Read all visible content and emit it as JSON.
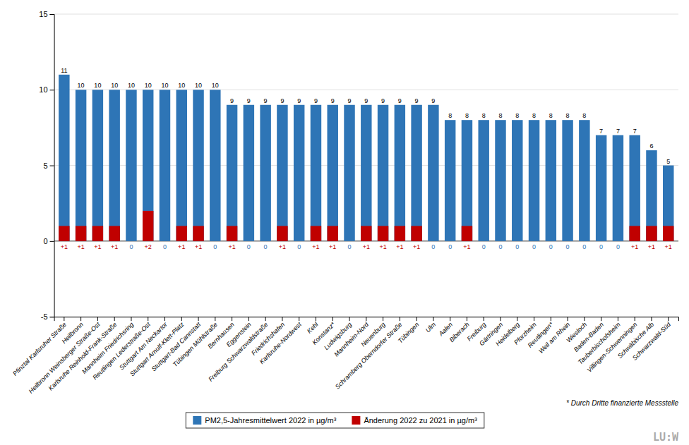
{
  "chart_data": {
    "type": "bar",
    "categories": [
      "Pfinztal Karlsruher Straße",
      "Heilbronn",
      "Heilbronn Weinsberger Straße-Ost",
      "Karlsruhe Reinhold-Frank-Straße",
      "Mannheim Friedrichsring",
      "Reutlingen Lederstraße-Ost",
      "Stuttgart Am Neckartor",
      "Stuttgart Arnulf-Klett-Platz",
      "Stuttgart-Bad Cannstatt",
      "Tübingen Mühlstraße",
      "Bernhausen",
      "Eggenstein",
      "Freiburg Schwarzwaldstraße",
      "Friedrichshafen",
      "Karlsruhe-Nordwest",
      "Kehl",
      "Konstanz*",
      "Ludwigsburg",
      "Mannheim-Nord",
      "Neuenburg",
      "Schramberg Oberndorfer Straße",
      "Tübingen",
      "Ulm",
      "Aalen",
      "Biberach",
      "Freiburg",
      "Gärtringen",
      "Heidelberg",
      "Pforzheim",
      "Reutlingen*",
      "Weil am Rhein",
      "Wiesloch",
      "Baden-Baden",
      "Tauberbischofsheim",
      "Villingen-Schwenningen",
      "Schwäbische Alb",
      "Schwarzwald-Süd"
    ],
    "series": [
      {
        "name": "PM2,5-Jahresmittelwert 2022 in µg/m³",
        "color": "#2E75B6",
        "values": [
          11,
          10,
          10,
          10,
          10,
          10,
          10,
          10,
          10,
          10,
          9,
          9,
          9,
          9,
          9,
          9,
          9,
          9,
          9,
          9,
          9,
          9,
          9,
          8,
          8,
          8,
          8,
          8,
          8,
          8,
          8,
          8,
          7,
          7,
          7,
          6,
          5
        ]
      },
      {
        "name": "Änderung 2022 zu 2021 in µg/m³",
        "color": "#C00000",
        "values": [
          1,
          1,
          1,
          1,
          0,
          2,
          0,
          1,
          1,
          0,
          1,
          0,
          0,
          1,
          0,
          1,
          1,
          0,
          1,
          1,
          1,
          1,
          0,
          0,
          1,
          0,
          0,
          0,
          0,
          0,
          0,
          0,
          0,
          0,
          1,
          1,
          1
        ],
        "value_labels": [
          "+1",
          "+1",
          "+1",
          "+1",
          "0",
          "+2",
          "0",
          "+1",
          "+1",
          "0",
          "+1",
          "0",
          "0",
          "+1",
          "0",
          "+1",
          "+1",
          "0",
          "+1",
          "+1",
          "+1",
          "+1",
          "0",
          "0",
          "+1",
          "0",
          "0",
          "0",
          "0",
          "0",
          "0",
          "0",
          "0",
          "0",
          "+1",
          "+1",
          "+1"
        ]
      }
    ],
    "stacked": false,
    "data_labels": true,
    "ylim": [
      -5,
      15
    ],
    "yticks": [
      -5,
      0,
      5,
      10,
      15
    ],
    "grid": true,
    "legend": "bottom",
    "annotations": [
      "* Durch Dritte finanzierte Messstelle",
      "LU:W"
    ]
  }
}
